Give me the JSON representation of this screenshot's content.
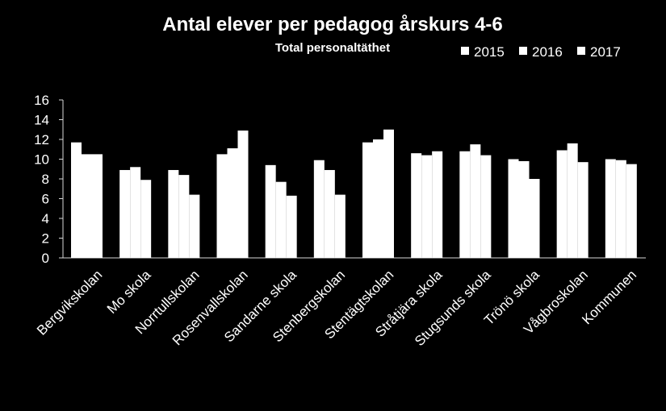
{
  "chart_data": {
    "type": "bar",
    "title": "Antal elever per pedagog årskurs 4-6",
    "subtitle": "Total personaltäthet",
    "xlabel": "",
    "ylabel": "",
    "ylim": [
      0,
      16
    ],
    "yticks": [
      0,
      2,
      4,
      6,
      8,
      10,
      12,
      14,
      16
    ],
    "grid": false,
    "legend_position": "top-right",
    "bar_color": "#ffffff",
    "background": "#000000",
    "categories": [
      "Bergvikskolan",
      "Mo skola",
      "Norrtullskolan",
      "Rosenvallskolan",
      "Sandarne skola",
      "Stenbergskolan",
      "Stentägtskolan",
      "Stråtjära skola",
      "Stugsunds skola",
      "Trönö skola",
      "Vågbroskolan",
      "Kommunen"
    ],
    "series": [
      {
        "name": "2015",
        "values": [
          11.7,
          8.9,
          8.9,
          10.5,
          9.4,
          9.9,
          11.7,
          10.6,
          10.8,
          10.0,
          10.9,
          10.0
        ]
      },
      {
        "name": "2016",
        "values": [
          10.5,
          9.2,
          8.4,
          11.1,
          7.7,
          8.9,
          12.0,
          10.4,
          11.5,
          9.8,
          11.6,
          9.9
        ]
      },
      {
        "name": "2017",
        "values": [
          10.5,
          7.9,
          6.4,
          12.9,
          6.3,
          6.4,
          13.0,
          10.8,
          10.4,
          8.0,
          9.7,
          9.5
        ]
      }
    ]
  }
}
